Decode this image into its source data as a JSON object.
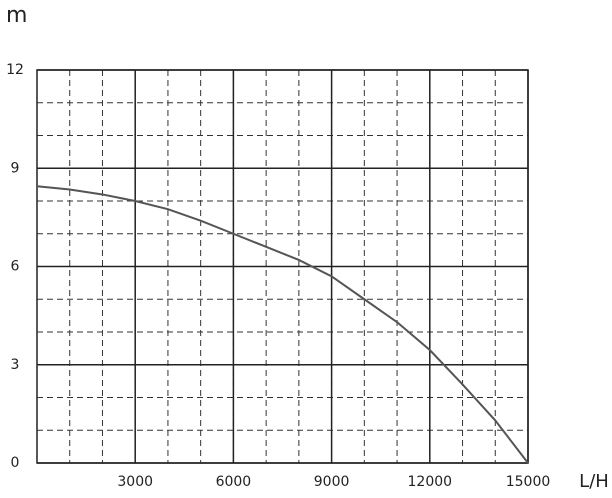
{
  "chart_data": {
    "type": "line",
    "y_label": "m",
    "x_label": "L/H",
    "x": [
      0,
      1000,
      2000,
      3000,
      4000,
      5000,
      6000,
      7000,
      8000,
      9000,
      10000,
      11000,
      12000,
      13000,
      14000,
      15000
    ],
    "series": [
      {
        "name": "curve",
        "color": "#555555",
        "values": [
          8.45,
          8.35,
          8.2,
          8.0,
          7.75,
          7.4,
          7.0,
          6.6,
          6.2,
          5.7,
          5.0,
          4.3,
          3.45,
          2.4,
          1.3,
          0
        ]
      }
    ],
    "xlim": [
      0,
      15000
    ],
    "ylim": [
      0,
      12
    ],
    "xticks": [
      3000,
      6000,
      9000,
      12000,
      15000
    ],
    "yticks": [
      0,
      3,
      6,
      9,
      12
    ],
    "grid": true
  }
}
